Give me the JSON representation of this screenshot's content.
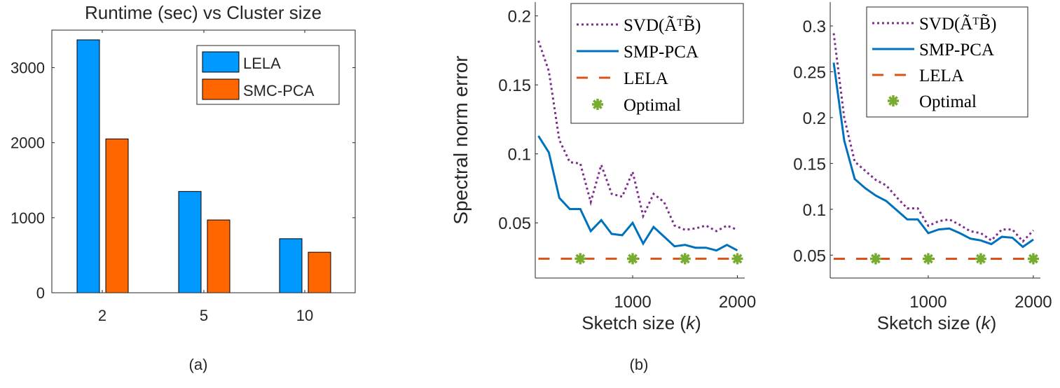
{
  "colors": {
    "lela_bar": "#0099ff",
    "smc_bar": "#ff6600",
    "svd": "#7e2f8e",
    "smp": "#0072bd",
    "lela_line": "#d95319",
    "optimal": "#77ac30",
    "axis": "#262626"
  },
  "captions": {
    "a": "(a)",
    "b": "(b)"
  },
  "chart_data": [
    {
      "type": "bar",
      "title": "Runtime (sec) vs Cluster size",
      "categories": [
        "2",
        "5",
        "10"
      ],
      "series": [
        {
          "name": "LELA",
          "values": [
            3370,
            1350,
            720
          ]
        },
        {
          "name": "SMC-PCA",
          "values": [
            2050,
            970,
            540
          ]
        }
      ],
      "ylim": [
        0,
        3500
      ],
      "yticks": [
        0,
        1000,
        2000,
        3000
      ],
      "legend": "top-right",
      "grid": false
    },
    {
      "type": "line",
      "xlabel": "Sketch size (k)",
      "ylabel": "Spectral norm error",
      "xlim": [
        70,
        2070
      ],
      "ylim": [
        0.01,
        0.21
      ],
      "xticks": [
        1000,
        2000
      ],
      "yticks": [
        0.05,
        0.1,
        0.15,
        0.2
      ],
      "legend": "top-right",
      "grid": false,
      "x": [
        100,
        200,
        300,
        400,
        500,
        600,
        700,
        800,
        900,
        1000,
        1100,
        1200,
        1300,
        1400,
        1500,
        1600,
        1700,
        1800,
        1900,
        2000
      ],
      "series": [
        {
          "name": "SVD(ÃᵀB̃)",
          "style": "dotted",
          "values": [
            0.182,
            0.16,
            0.11,
            0.094,
            0.093,
            0.065,
            0.092,
            0.071,
            0.069,
            0.087,
            0.055,
            0.071,
            0.065,
            0.048,
            0.045,
            0.046,
            0.048,
            0.044,
            0.048,
            0.045
          ]
        },
        {
          "name": "SMP-PCA",
          "style": "solid",
          "values": [
            0.113,
            0.101,
            0.068,
            0.06,
            0.06,
            0.044,
            0.052,
            0.042,
            0.041,
            0.05,
            0.035,
            0.047,
            0.04,
            0.033,
            0.034,
            0.032,
            0.032,
            0.03,
            0.034,
            0.03
          ]
        },
        {
          "name": "LELA",
          "style": "dashed",
          "values": [
            0.024,
            0.024,
            0.024,
            0.024,
            0.024,
            0.024,
            0.024,
            0.024,
            0.024,
            0.024,
            0.024,
            0.024,
            0.024,
            0.024,
            0.024,
            0.024,
            0.024,
            0.024,
            0.024,
            0.024
          ]
        },
        {
          "name": "Optimal",
          "style": "marker",
          "x": [
            500,
            1000,
            1500,
            2000
          ],
          "values": [
            0.024,
            0.024,
            0.024,
            0.024
          ]
        }
      ]
    },
    {
      "type": "line",
      "xlabel": "Sketch size (k)",
      "xlim": [
        67,
        2067
      ],
      "ylim": [
        0.025,
        0.326
      ],
      "xticks": [
        1000,
        2000
      ],
      "yticks": [
        0.05,
        0.1,
        0.15,
        0.2,
        0.25,
        0.3
      ],
      "legend": "top-right",
      "grid": false,
      "x": [
        100,
        200,
        300,
        400,
        500,
        600,
        700,
        800,
        900,
        1000,
        1100,
        1200,
        1300,
        1400,
        1500,
        1600,
        1700,
        1800,
        1900,
        2000
      ],
      "series": [
        {
          "name": "SVD(ÃᵀB̃)",
          "style": "dotted",
          "values": [
            0.292,
            0.2,
            0.152,
            0.142,
            0.132,
            0.126,
            0.113,
            0.101,
            0.101,
            0.082,
            0.087,
            0.089,
            0.083,
            0.076,
            0.074,
            0.066,
            0.078,
            0.078,
            0.065,
            0.077
          ]
        },
        {
          "name": "SMP-PCA",
          "style": "solid",
          "values": [
            0.26,
            0.175,
            0.133,
            0.123,
            0.115,
            0.109,
            0.099,
            0.089,
            0.089,
            0.074,
            0.078,
            0.079,
            0.074,
            0.068,
            0.066,
            0.062,
            0.07,
            0.069,
            0.059,
            0.067
          ]
        },
        {
          "name": "LELA",
          "style": "dashed",
          "values": [
            0.046,
            0.046,
            0.046,
            0.046,
            0.046,
            0.046,
            0.046,
            0.046,
            0.046,
            0.046,
            0.046,
            0.046,
            0.046,
            0.046,
            0.046,
            0.046,
            0.046,
            0.046,
            0.046,
            0.046
          ]
        },
        {
          "name": "Optimal",
          "style": "marker",
          "x": [
            500,
            1000,
            1500,
            2000
          ],
          "values": [
            0.046,
            0.046,
            0.046,
            0.046
          ]
        }
      ]
    }
  ]
}
